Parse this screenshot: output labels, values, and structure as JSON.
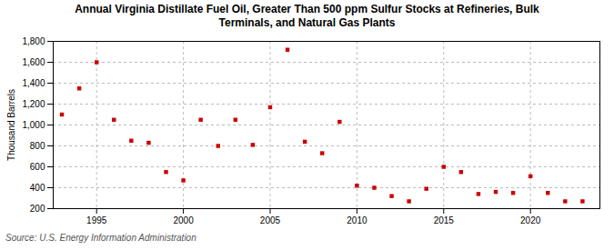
{
  "chart_data": {
    "type": "scatter",
    "title": "Annual Virginia Distillate Fuel Oil, Greater Than 500 ppm Sulfur Stocks at Refineries, Bulk\nTerminals, and Natural Gas Plants",
    "ylabel": "Thousand Barrels",
    "source": "Source: U.S. Energy Information Administration",
    "color": "#cc0000",
    "marker": "square",
    "x": [
      1993,
      1994,
      1995,
      1996,
      1997,
      1998,
      1999,
      2000,
      2001,
      2002,
      2003,
      2004,
      2005,
      2006,
      2007,
      2008,
      2009,
      2010,
      2011,
      2012,
      2013,
      2014,
      2015,
      2016,
      2017,
      2018,
      2019,
      2020,
      2021,
      2022,
      2023
    ],
    "values": [
      1100,
      1350,
      1600,
      1050,
      850,
      830,
      550,
      470,
      1050,
      800,
      1050,
      810,
      1170,
      1720,
      840,
      730,
      1030,
      420,
      400,
      320,
      270,
      390,
      600,
      550,
      340,
      360,
      350,
      510,
      350,
      270,
      270
    ],
    "xlim": [
      1992.5,
      2024
    ],
    "xticks": [
      1995,
      2000,
      2005,
      2010,
      2015,
      2020
    ],
    "ylim": [
      200,
      1800
    ],
    "yticks": [
      200,
      400,
      600,
      800,
      {
        "value": 1000,
        "label": "1,000"
      },
      {
        "value": 1200,
        "label": "1,200"
      },
      {
        "value": 1400,
        "label": "1,400"
      },
      {
        "value": 1600,
        "label": "1,600"
      },
      {
        "value": 1800,
        "label": "1,800"
      }
    ],
    "grid": true
  }
}
